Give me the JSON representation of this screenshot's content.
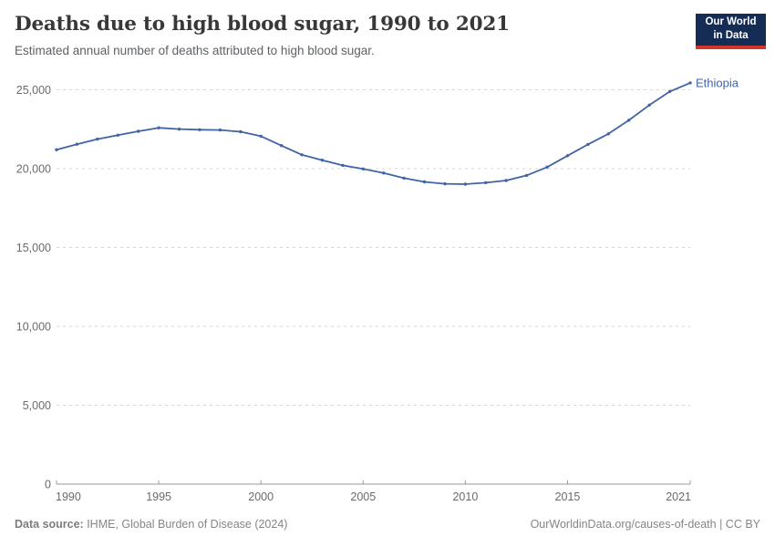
{
  "header": {
    "title": "Deaths due to high blood sugar, 1990 to 2021",
    "subtitle": "Estimated annual number of deaths attributed to high blood sugar.",
    "logo": {
      "line1": "Our World",
      "line2": "in Data"
    }
  },
  "chart_data": {
    "type": "line",
    "title": "Deaths due to high blood sugar, 1990 to 2021",
    "xlabel": "",
    "ylabel": "",
    "x": [
      1990,
      1991,
      1992,
      1993,
      1994,
      1995,
      1996,
      1997,
      1998,
      1999,
      2000,
      2001,
      2002,
      2003,
      2004,
      2005,
      2006,
      2007,
      2008,
      2009,
      2010,
      2011,
      2012,
      2013,
      2014,
      2015,
      2016,
      2017,
      2018,
      2019,
      2020,
      2021
    ],
    "series": [
      {
        "name": "Ethiopia",
        "color": "#4164A5",
        "values": [
          21200,
          21550,
          21870,
          22120,
          22370,
          22590,
          22510,
          22470,
          22450,
          22340,
          22060,
          21460,
          20880,
          20540,
          20210,
          19980,
          19720,
          19400,
          19160,
          19040,
          19020,
          19110,
          19250,
          19570,
          20100,
          20820,
          21540,
          22210,
          23070,
          24030,
          24890,
          25440
        ]
      }
    ],
    "xlim": [
      1990,
      2021
    ],
    "ylim": [
      0,
      25000
    ],
    "xticks": [
      1990,
      1995,
      2000,
      2005,
      2010,
      2015,
      2021
    ],
    "yticks": [
      0,
      5000,
      10000,
      15000,
      20000,
      25000
    ],
    "ytick_labels": [
      "0",
      "5,000",
      "10,000",
      "15,000",
      "20,000",
      "25,000"
    ],
    "grid": "horizontal-dashed",
    "legend": "end-of-line-label"
  },
  "footer": {
    "source_label": "Data source:",
    "source_text": " IHME, Global Burden of Disease (2024)",
    "credit": "OurWorldinData.org/causes-of-death | CC BY"
  },
  "colors": {
    "line": "#4164A5",
    "grid": "#d6d6d6",
    "axis": "#9a9a9a",
    "tick_text": "#6b6b6b",
    "logo_bg": "#152c54",
    "logo_accent": "#cf372c"
  }
}
